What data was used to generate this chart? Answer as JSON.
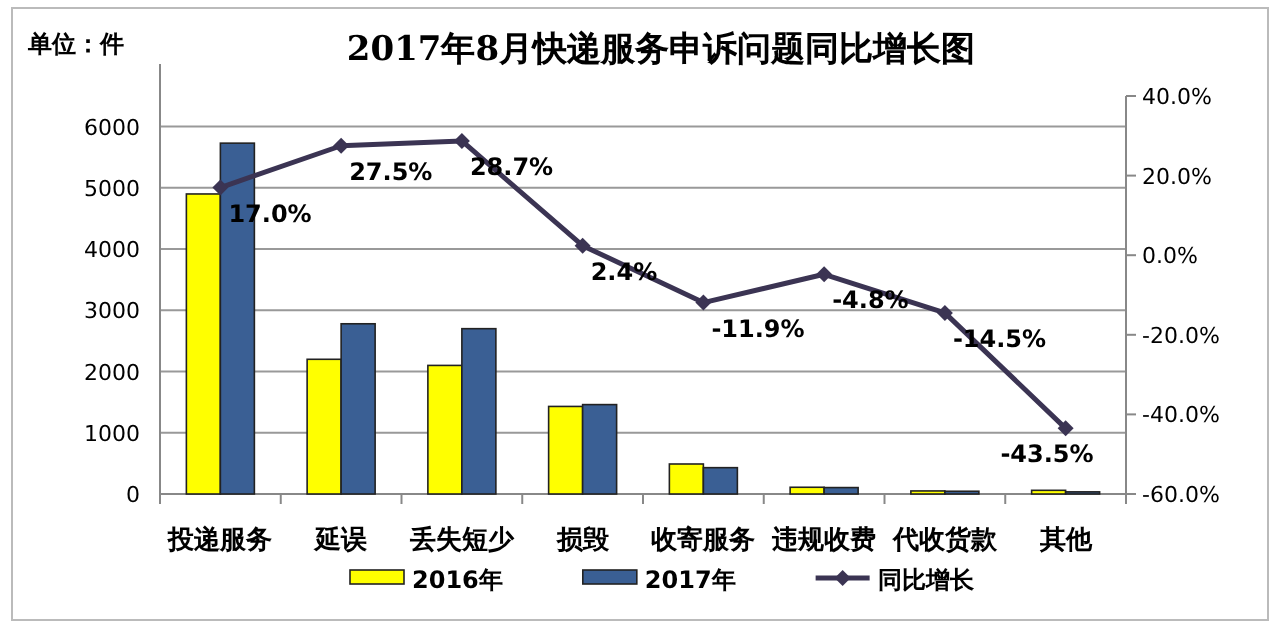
{
  "chart_data": {
    "type": "bar",
    "title": "2017年8月快递服务申诉问题同比增长图",
    "ylabel": "单位：件",
    "categories": [
      "投递服务",
      "延误",
      "丢失短少",
      "损毁",
      "收寄服务",
      "违规收费",
      "代收货款",
      "其他"
    ],
    "series": [
      {
        "name": "2016年",
        "color": "#ffff00",
        "values": [
          4900,
          2200,
          2100,
          1430,
          490,
          110,
          50,
          60
        ]
      },
      {
        "name": "2017年",
        "color": "#3a5f94",
        "values": [
          5730,
          2780,
          2700,
          1460,
          430,
          105,
          45,
          35
        ]
      },
      {
        "name": "同比增长",
        "type": "line",
        "axis": "y2",
        "color": "#3b3453",
        "marker": "diamond",
        "values": [
          17.0,
          27.5,
          28.7,
          2.4,
          -11.9,
          -4.8,
          -14.5,
          -43.5
        ],
        "value_labels": [
          "17.0%",
          "27.5%",
          "28.7%",
          "2.4%",
          "-11.9%",
          "-4.8%",
          "-14.5%",
          "-43.5%"
        ]
      }
    ],
    "ylim": [
      0,
      6500
    ],
    "yticks": [
      0,
      1000,
      2000,
      3000,
      4000,
      5000,
      6000
    ],
    "y2lim": [
      -60,
      40
    ],
    "y2ticks": [
      {
        "value": -60,
        "label": "-60.0%"
      },
      {
        "value": -40,
        "label": "-40.0%"
      },
      {
        "value": -20,
        "label": "-20.0%"
      },
      {
        "value": 0,
        "label": "0.0%"
      },
      {
        "value": 20,
        "label": "20.0%"
      },
      {
        "value": 40,
        "label": "40.0%"
      }
    ],
    "grid": "y",
    "legend": "bottom"
  }
}
